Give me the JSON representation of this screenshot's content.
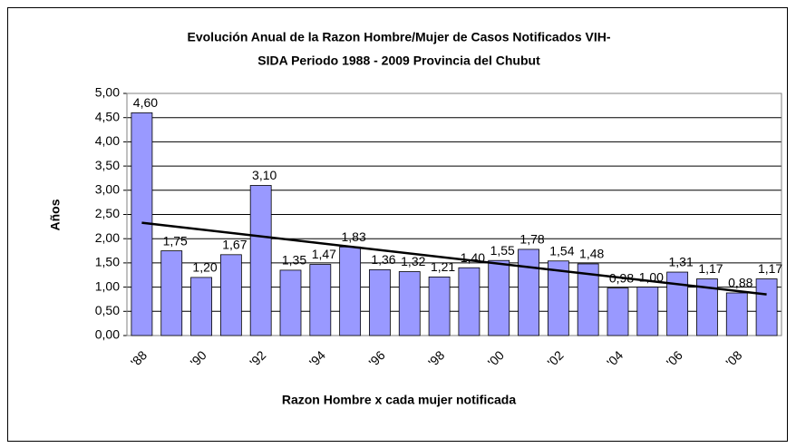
{
  "chart_data": {
    "type": "bar",
    "title": "Evolución Anual de la Razon Hombre/Mujer de Casos Notificados VIH-",
    "subtitle": "SIDA Periodo 1988 - 2009 Provincia del Chubut",
    "x_label": "Razon Hombre x cada mujer notificada",
    "y_label": "Años",
    "categories": [
      "'88",
      null,
      "'90",
      null,
      "'92",
      null,
      "'94",
      null,
      "'96",
      null,
      "'98",
      null,
      "'00",
      null,
      "'02",
      null,
      "'04",
      null,
      "'06",
      null,
      "'08",
      null
    ],
    "values": [
      4.6,
      1.75,
      1.2,
      1.67,
      3.1,
      1.35,
      1.47,
      1.83,
      1.36,
      1.32,
      1.21,
      1.4,
      1.55,
      1.78,
      1.54,
      1.48,
      0.98,
      1.0,
      1.31,
      1.17,
      0.88,
      1.17
    ],
    "value_labels": [
      "4,60",
      "1,75",
      "1,20",
      "1,67",
      "3,10",
      "1,35",
      "1,47",
      "1,83",
      "1,36",
      "1,32",
      "1,21",
      "1,40",
      "1,55",
      "1,78",
      "1,54",
      "1,48",
      "0,98",
      "1,00",
      "1,31",
      "1,17",
      "0,88",
      "1,17"
    ],
    "color": "#9999ff",
    "trendline": [
      2.33,
      0.85
    ],
    "trend_color": "#000000",
    "ylim": [
      0,
      5
    ],
    "yticks": [
      {
        "value": 0,
        "label": "0,00"
      },
      {
        "value": 0.5,
        "label": "0,50"
      },
      {
        "value": 1,
        "label": "1,00"
      },
      {
        "value": 1.5,
        "label": "1,50"
      },
      {
        "value": 2,
        "label": "2,00"
      },
      {
        "value": 2.5,
        "label": "2,50"
      },
      {
        "value": 3,
        "label": "3,00"
      },
      {
        "value": 3.5,
        "label": "3,50"
      },
      {
        "value": 4,
        "label": "4,00"
      },
      {
        "value": 4.5,
        "label": "4,50"
      },
      {
        "value": 5,
        "label": "5,00"
      }
    ],
    "grid": true
  }
}
